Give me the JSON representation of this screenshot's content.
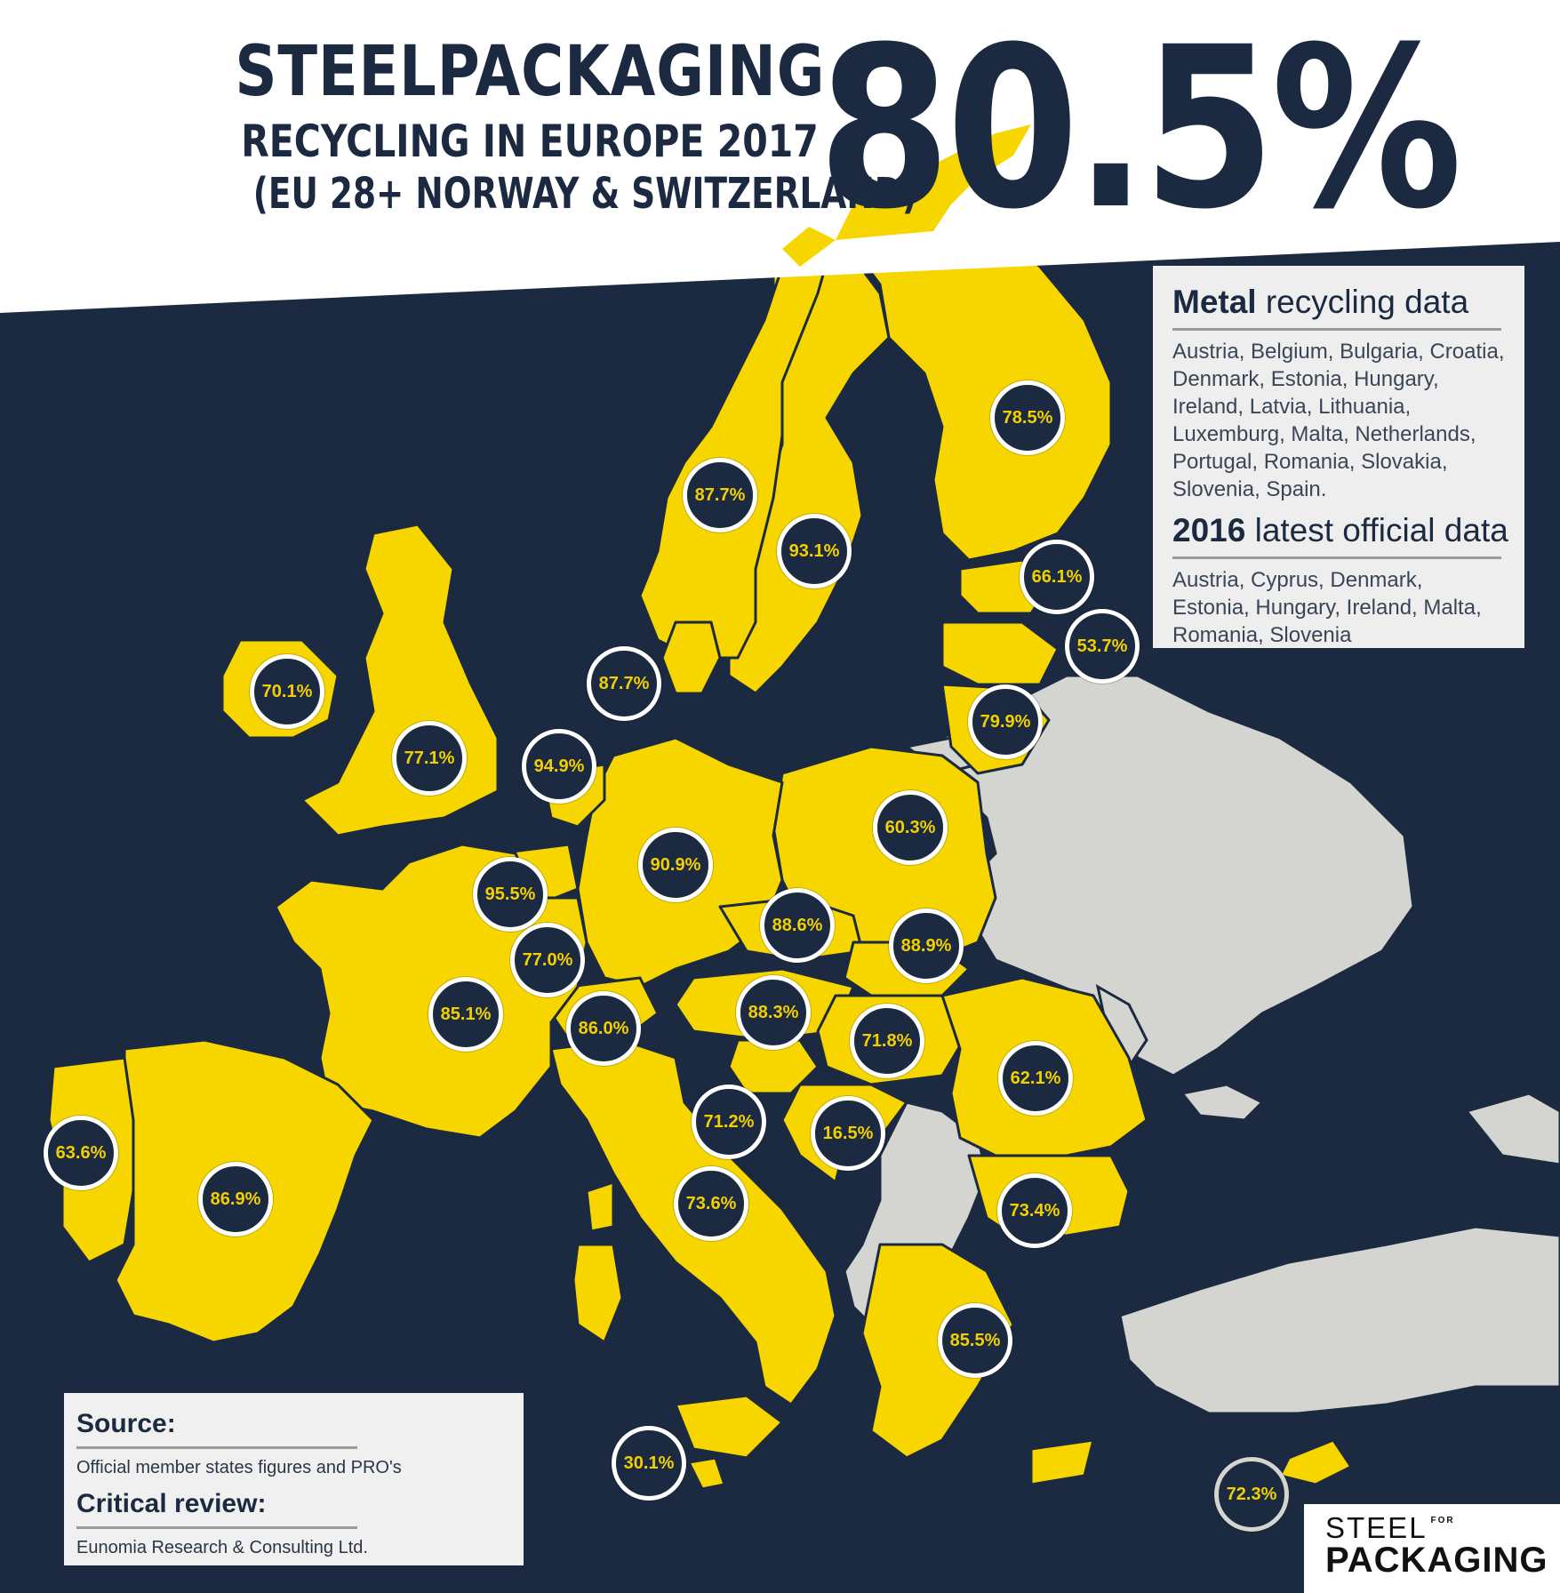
{
  "title": {
    "line1": "STEELPACKAGING",
    "line2": "RECYCLING IN EUROPE 2017",
    "line3": "(EU 28+ NORWAY & SWITZERLAND)",
    "headline_rate": "80.5%"
  },
  "colors": {
    "navy": "#1b2a40",
    "included_country": "#f7d600",
    "non_included_country": "#d4d4d0",
    "badge_text": "#f2d000",
    "badge_border": "#ffffff"
  },
  "countries": [
    {
      "label": "Finland",
      "value": "78.5%"
    },
    {
      "label": "Norway",
      "value": "87.7%"
    },
    {
      "label": "Sweden",
      "value": "93.1%"
    },
    {
      "label": "Estonia",
      "value": "66.1%"
    },
    {
      "label": "Latvia",
      "value": "53.7%"
    },
    {
      "label": "Lithuania",
      "value": "79.9%"
    },
    {
      "label": "Denmark",
      "value": "87.7%"
    },
    {
      "label": "Ireland",
      "value": "70.1%"
    },
    {
      "label": "United Kingdom",
      "value": "77.1%"
    },
    {
      "label": "Netherlands",
      "value": "94.9%"
    },
    {
      "label": "Germany",
      "value": "90.9%"
    },
    {
      "label": "Poland",
      "value": "60.3%"
    },
    {
      "label": "Belgium",
      "value": "95.5%"
    },
    {
      "label": "Luxembourg",
      "value": "77.0%"
    },
    {
      "label": "Czech Republic",
      "value": "88.6%"
    },
    {
      "label": "Slovakia",
      "value": "88.9%"
    },
    {
      "label": "France",
      "value": "85.1%"
    },
    {
      "label": "Switzerland",
      "value": "86.0%"
    },
    {
      "label": "Austria",
      "value": "88.3%"
    },
    {
      "label": "Hungary",
      "value": "71.8%"
    },
    {
      "label": "Romania",
      "value": "62.1%"
    },
    {
      "label": "Slovenia",
      "value": "71.2%"
    },
    {
      "label": "Croatia",
      "value": "16.5%"
    },
    {
      "label": "Portugal",
      "value": "63.6%"
    },
    {
      "label": "Spain",
      "value": "86.9%"
    },
    {
      "label": "Italy",
      "value": "73.6%"
    },
    {
      "label": "Bulgaria",
      "value": "73.4%"
    },
    {
      "label": "Greece",
      "value": "85.5%"
    },
    {
      "label": "Malta",
      "value": "30.1%"
    },
    {
      "label": "Cyprus",
      "value": "72.3%"
    }
  ],
  "info_panel": {
    "metal_bold": "Metal",
    "metal_rest": " recycling data",
    "metal_countries": "Austria, Belgium, Bulgaria, Croatia, Denmark, Estonia, Hungary, Ireland, Latvia, Lithuania, Luxemburg, Malta, Netherlands, Portugal, Romania, Slovakia, Slovenia, Spain.",
    "year_bold": "2016",
    "year_rest": " latest official data",
    "year_countries": "Austria, Cyprus, Denmark, Estonia, Hungary, Ireland, Malta, Romania, Slovenia"
  },
  "source_box": {
    "source_heading": "Source:",
    "source_text": "Official member states figures and PRO's",
    "review_heading": "Critical review:",
    "review_text": "Eunomia Research & Consulting Ltd."
  },
  "logo": {
    "word1": "STEEL",
    "word_small": "FOR",
    "word2": "PACKAGING"
  }
}
